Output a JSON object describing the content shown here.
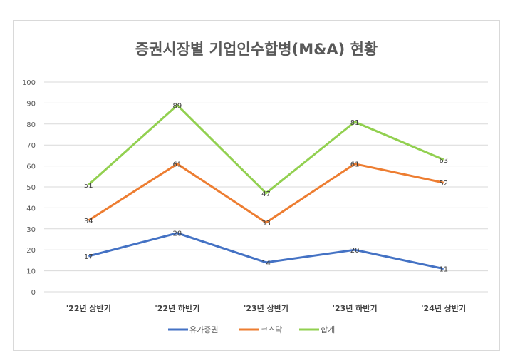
{
  "chart_data": {
    "type": "line",
    "title": "증권시장별 기업인수합병(M&A) 현황",
    "categories": [
      "'22년 상반기",
      "'22년 하반기",
      "'23년 상반기",
      "'23년 하반기",
      "'24년 상반기"
    ],
    "series": [
      {
        "name": "유가증권",
        "values": [
          17,
          28,
          14,
          20,
          11
        ],
        "color": "#4472c4"
      },
      {
        "name": "코스닥",
        "values": [
          34,
          61,
          33,
          61,
          52
        ],
        "color": "#ed7d31"
      },
      {
        "name": "합계",
        "values": [
          51,
          89,
          47,
          81,
          63
        ],
        "color": "#92d050"
      }
    ],
    "ylim": [
      0,
      100
    ],
    "yticks": [
      0,
      10,
      20,
      30,
      40,
      50,
      60,
      70,
      80,
      90,
      100
    ],
    "grid": true,
    "legend": "bottom",
    "data_labels": true
  }
}
